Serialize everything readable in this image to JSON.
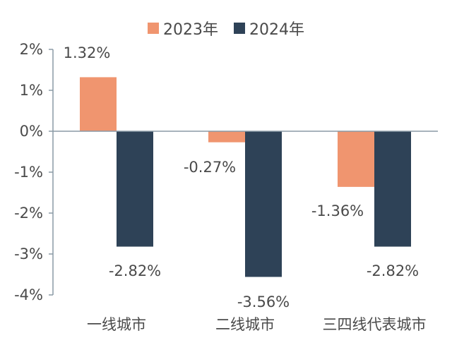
{
  "chart_data": {
    "type": "bar",
    "categories": [
      "一线城市",
      "二线城市",
      "三四线代表城市"
    ],
    "series": [
      {
        "name": "2023年",
        "values": [
          1.32,
          -0.27,
          -1.36
        ],
        "labels": [
          "1.32%",
          "-0.27%",
          "-1.36%"
        ],
        "color": "#f0956f"
      },
      {
        "name": "2024年",
        "values": [
          -2.82,
          -3.56,
          -2.82
        ],
        "labels": [
          "-2.82%",
          "-3.56%",
          "-2.82%"
        ],
        "color": "#2e4257"
      }
    ],
    "yticks": [
      "2%",
      "1%",
      "0%",
      "-1%",
      "-2%",
      "-3%",
      "-4%"
    ],
    "ylim": [
      -4,
      2
    ],
    "grid": false,
    "legend_position": "top-center",
    "axis_color": "#8a9aa6"
  }
}
